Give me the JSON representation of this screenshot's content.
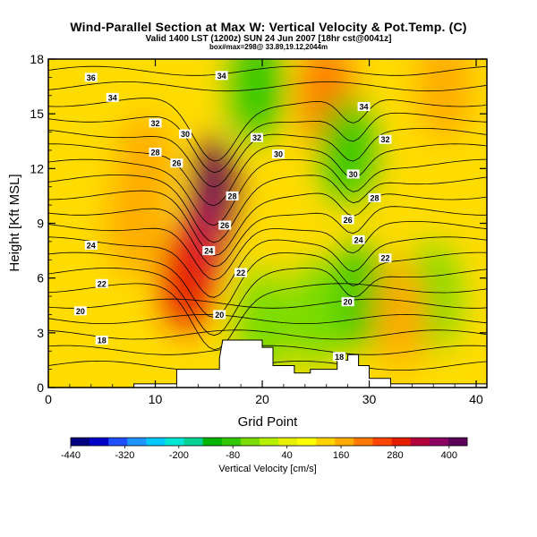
{
  "chart_data": {
    "type": "heatmap",
    "title": "Wind-Parallel Section at Max W: Vertical Velocity & Pot.Temp. (C)",
    "subtitle": "Valid 1400 LST (1200z) SUN 24 Jun 2007 [18hr cst@0041z]",
    "subtitle2": "box#max=298@ 33.89,19.12,2044m",
    "xlabel": "Grid Point",
    "ylabel": "Height [Kft MSL]",
    "xlim": [
      0,
      41
    ],
    "ylim": [
      0,
      18
    ],
    "x_ticks": [
      0,
      10,
      20,
      30,
      40
    ],
    "y_ticks": [
      0,
      3,
      6,
      9,
      12,
      15,
      18
    ],
    "colorbar": {
      "label": "Vertical Velocity [cm/s]",
      "min": -440,
      "max": 440,
      "ticks": [
        -440,
        -320,
        -200,
        -80,
        40,
        160,
        280,
        400
      ],
      "colors": [
        "#000080",
        "#0000c8",
        "#1e50ff",
        "#1e96ff",
        "#00c8ff",
        "#00e6d2",
        "#00d296",
        "#00b400",
        "#32c800",
        "#78dc00",
        "#b4f000",
        "#e6f000",
        "#ffff00",
        "#ffd200",
        "#ffaa00",
        "#ff7800",
        "#ff4600",
        "#e61e00",
        "#b4003c",
        "#8c0064",
        "#5a005a"
      ]
    },
    "terrain": [
      [
        0,
        0
      ],
      [
        8,
        0
      ],
      [
        8,
        0.2
      ],
      [
        12,
        0.2
      ],
      [
        12,
        1.0
      ],
      [
        16,
        1.0
      ],
      [
        16,
        1.6
      ],
      [
        16.3,
        2.6
      ],
      [
        20,
        2.6
      ],
      [
        20,
        2.2
      ],
      [
        21,
        2.2
      ],
      [
        21,
        1.2
      ],
      [
        23,
        1.2
      ],
      [
        23,
        0.8
      ],
      [
        24.5,
        0.8
      ],
      [
        24.5,
        1.0
      ],
      [
        27,
        1.0
      ],
      [
        27,
        1.5
      ],
      [
        28,
        1.5
      ],
      [
        28,
        1.8
      ],
      [
        29,
        1.8
      ],
      [
        29,
        1.2
      ],
      [
        30,
        1.2
      ],
      [
        30,
        0.5
      ],
      [
        32,
        0.5
      ],
      [
        32,
        0.2
      ],
      [
        41,
        0.2
      ],
      [
        41,
        0
      ]
    ],
    "velocity_cells": [
      {
        "x": 15.5,
        "y": 11,
        "w": 440
      },
      {
        "x": 14.5,
        "y": 8,
        "w": 360
      },
      {
        "x": 13,
        "y": 6,
        "w": 280
      },
      {
        "x": 8,
        "y": 9,
        "w": 160
      },
      {
        "x": 9,
        "y": 12,
        "w": 160
      },
      {
        "x": 26,
        "y": 16,
        "w": 200
      },
      {
        "x": 37,
        "y": 16.5,
        "w": 160
      },
      {
        "x": 19.5,
        "y": 16.5,
        "w": -80
      },
      {
        "x": 28,
        "y": 13,
        "w": -80
      },
      {
        "x": 29,
        "y": 5,
        "w": -80
      },
      {
        "x": 25,
        "y": 4,
        "w": -40
      },
      {
        "x": 20,
        "y": 3.5,
        "w": -40
      },
      {
        "x": 36,
        "y": 5,
        "w": -40
      },
      {
        "x": 33,
        "y": 4,
        "w": 160
      }
    ],
    "theta_contour_labels": [
      {
        "x": 4,
        "y": 17,
        "v": "36"
      },
      {
        "x": 6,
        "y": 15.9,
        "v": "34"
      },
      {
        "x": 10,
        "y": 14.5,
        "v": "32"
      },
      {
        "x": 12.8,
        "y": 13.9,
        "v": "30"
      },
      {
        "x": 10,
        "y": 12.9,
        "v": "28"
      },
      {
        "x": 12,
        "y": 12.3,
        "v": "26"
      },
      {
        "x": 16.2,
        "y": 17.1,
        "v": "34"
      },
      {
        "x": 19.5,
        "y": 13.7,
        "v": "32"
      },
      {
        "x": 21.5,
        "y": 12.8,
        "v": "30"
      },
      {
        "x": 17.2,
        "y": 10.5,
        "v": "28"
      },
      {
        "x": 16.5,
        "y": 8.9,
        "v": "26"
      },
      {
        "x": 15,
        "y": 7.5,
        "v": "24"
      },
      {
        "x": 18,
        "y": 6.3,
        "v": "22"
      },
      {
        "x": 16,
        "y": 4.0,
        "v": "20"
      },
      {
        "x": 4,
        "y": 7.8,
        "v": "24"
      },
      {
        "x": 5,
        "y": 5.7,
        "v": "22"
      },
      {
        "x": 3,
        "y": 4.2,
        "v": "20"
      },
      {
        "x": 5,
        "y": 2.6,
        "v": "18"
      },
      {
        "x": 29.5,
        "y": 15.4,
        "v": "34"
      },
      {
        "x": 31.5,
        "y": 13.6,
        "v": "32"
      },
      {
        "x": 28.5,
        "y": 11.7,
        "v": "30"
      },
      {
        "x": 30.5,
        "y": 10.4,
        "v": "28"
      },
      {
        "x": 28.0,
        "y": 9.2,
        "v": "26"
      },
      {
        "x": 29.0,
        "y": 8.1,
        "v": "24"
      },
      {
        "x": 31.5,
        "y": 7.1,
        "v": "22"
      },
      {
        "x": 28.0,
        "y": 4.7,
        "v": "20"
      },
      {
        "x": 27.2,
        "y": 1.7,
        "v": "18"
      }
    ],
    "grid": false
  }
}
